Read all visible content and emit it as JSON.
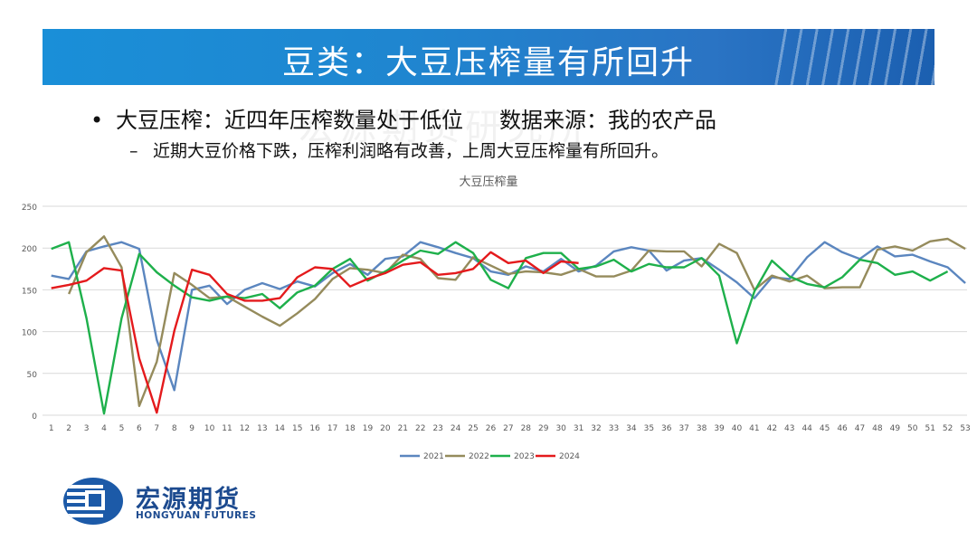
{
  "header": {
    "title": "豆类：大豆压榨量有所回升"
  },
  "watermark": "宏源期货研究所",
  "bullets": {
    "b1": "大豆压榨：近四年压榨数量处于低位",
    "b1_source": "数据来源：我的农产品",
    "b2": "近期大豆价格下跌，压榨利润略有改善，上周大豆压榨量有所回升。"
  },
  "logo": {
    "name_cn": "宏源期货",
    "name_en": "HONGYUAN FUTURES"
  },
  "chart_data": {
    "type": "line",
    "title": "大豆压榨量",
    "xlabel": "",
    "ylabel": "",
    "ylim": [
      0,
      250
    ],
    "yticks": [
      0,
      50,
      100,
      150,
      200,
      250
    ],
    "x": [
      1,
      2,
      3,
      4,
      5,
      6,
      7,
      8,
      9,
      10,
      11,
      12,
      13,
      14,
      15,
      16,
      17,
      18,
      19,
      20,
      21,
      22,
      23,
      24,
      25,
      26,
      27,
      28,
      29,
      30,
      31,
      32,
      33,
      34,
      35,
      36,
      37,
      38,
      39,
      40,
      41,
      42,
      43,
      44,
      45,
      46,
      47,
      48,
      49,
      50,
      51,
      52,
      53
    ],
    "grid": true,
    "legend": "bottom",
    "series": [
      {
        "name": "2021",
        "color": "#5b86bf",
        "values": [
          167,
          163,
          196,
          202,
          207,
          199,
          90,
          30,
          150,
          155,
          133,
          150,
          158,
          151,
          160,
          154,
          170,
          181,
          168,
          187,
          190,
          207,
          201,
          194,
          188,
          172,
          168,
          178,
          172,
          187,
          172,
          179,
          196,
          201,
          197,
          173,
          185,
          188,
          174,
          159,
          140,
          165,
          163,
          189,
          207,
          195,
          187,
          202,
          190,
          192,
          184,
          177,
          158
        ]
      },
      {
        "name": "2022",
        "color": "#958b5c",
        "values": [
          null,
          145,
          195,
          214,
          177,
          11,
          64,
          170,
          156,
          140,
          142,
          130,
          118,
          107,
          122,
          139,
          163,
          176,
          174,
          170,
          192,
          187,
          164,
          162,
          189,
          179,
          169,
          172,
          171,
          168,
          175,
          166,
          166,
          173,
          197,
          196,
          196,
          178,
          205,
          194,
          150,
          167,
          160,
          167,
          152,
          153,
          153,
          198,
          202,
          197,
          208,
          211,
          199
        ]
      },
      {
        "name": "2023",
        "color": "#1eb04b",
        "values": [
          199,
          207,
          116,
          2,
          116,
          193,
          171,
          155,
          141,
          137,
          142,
          140,
          145,
          128,
          147,
          155,
          175,
          187,
          161,
          172,
          185,
          197,
          193,
          207,
          194,
          162,
          152,
          188,
          194,
          194,
          175,
          178,
          186,
          172,
          181,
          177,
          177,
          188,
          167,
          86,
          148,
          185,
          166,
          157,
          153,
          165,
          186,
          182,
          168,
          172,
          161,
          172,
          null
        ]
      },
      {
        "name": "2024",
        "color": "#e41a1c",
        "values": [
          152,
          156,
          161,
          176,
          173,
          68,
          3,
          101,
          174,
          168,
          145,
          137,
          137,
          140,
          165,
          177,
          175,
          154,
          163,
          170,
          180,
          183,
          168,
          170,
          175,
          195,
          182,
          185,
          170,
          184,
          182,
          null,
          null,
          null,
          null,
          null,
          null,
          null,
          null,
          null,
          null,
          null,
          null,
          null,
          null,
          null,
          null,
          null,
          null,
          null,
          null,
          null,
          null
        ]
      }
    ]
  }
}
